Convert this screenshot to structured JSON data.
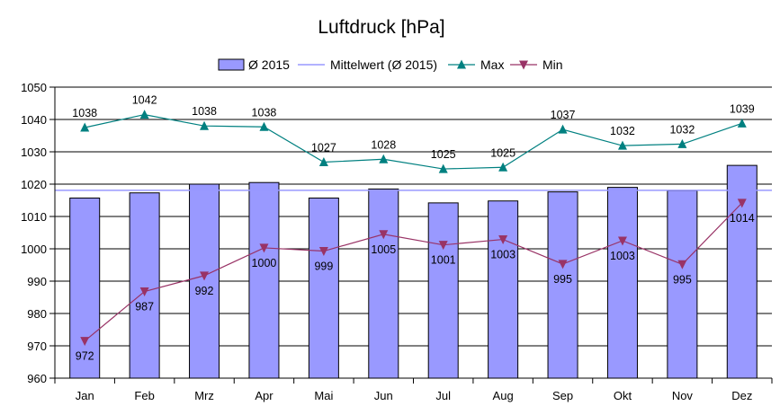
{
  "chart_data": {
    "type": "bar",
    "title": "Luftdruck [hPa]",
    "xlabel": "",
    "ylabel": "",
    "ylim": [
      960,
      1050
    ],
    "yticks": [
      960,
      970,
      980,
      990,
      1000,
      1010,
      1020,
      1030,
      1040,
      1050
    ],
    "grid": true,
    "legend_position": "top",
    "categories": [
      "Jan",
      "Feb",
      "Mrz",
      "Apr",
      "Mai",
      "Jun",
      "Jul",
      "Aug",
      "Sep",
      "Okt",
      "Nov",
      "Dez"
    ],
    "series": [
      {
        "name": "Ø 2015",
        "type": "bar",
        "color": "#9999ff",
        "values": [
          1015.7,
          1017.3,
          1020.0,
          1020.5,
          1015.7,
          1018.5,
          1014.2,
          1014.8,
          1017.6,
          1019.0,
          1018.0,
          1025.8
        ]
      },
      {
        "name": "Mittelwert (Ø 2015)",
        "type": "hline",
        "color": "#9999ff",
        "value": 1018.1
      },
      {
        "name": "Max",
        "type": "line",
        "marker": "triangle-up",
        "color": "#008080",
        "values": [
          1037.5,
          1041.5,
          1038.0,
          1037.7,
          1026.8,
          1027.7,
          1024.7,
          1025.2,
          1036.9,
          1031.9,
          1032.4,
          1038.8
        ],
        "labels": [
          "1038",
          "1042",
          "1038",
          "1038",
          "1027",
          "1028",
          "1025",
          "1025",
          "1037",
          "1032",
          "1032",
          "1039"
        ]
      },
      {
        "name": "Min",
        "type": "line",
        "marker": "triangle-down",
        "color": "#993366",
        "values": [
          971.5,
          986.8,
          991.7,
          1000.3,
          999.3,
          1004.5,
          1001.2,
          1002.9,
          995.3,
          1002.5,
          995.2,
          1014.2
        ],
        "labels": [
          "972",
          "987",
          "992",
          "1000",
          "999",
          "1005",
          "1001",
          "1003",
          "995",
          "1003",
          "995",
          "1014"
        ]
      }
    ]
  }
}
